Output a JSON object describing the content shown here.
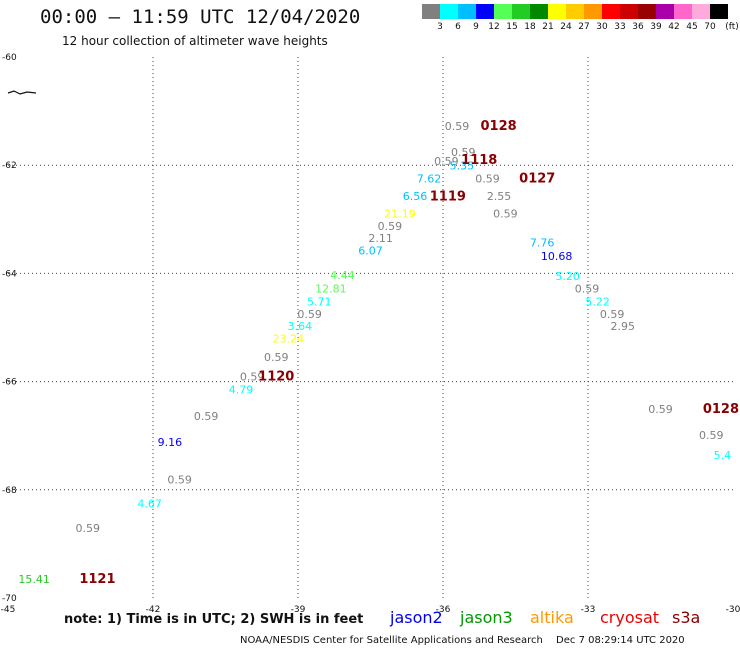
{
  "header": {
    "title": "00:00 – 11:59 UTC 12/04/2020",
    "subtitle": "12 hour collection of altimeter wave heights"
  },
  "legend": {
    "unit": "(ft)",
    "colors": [
      "#808080",
      "#00ffff",
      "#00bfff",
      "#0000ff",
      "#55ff55",
      "#22cc22",
      "#008800",
      "#ffff00",
      "#ffcc00",
      "#ff9900",
      "#ff0000",
      "#cc0000",
      "#990000",
      "#aa00aa",
      "#ff66cc",
      "#ffaadd",
      "#000000"
    ],
    "labels": [
      "3",
      "6",
      "9",
      "12",
      "15",
      "18",
      "21",
      "24",
      "27",
      "30",
      "33",
      "36",
      "39",
      "42",
      "45",
      "70"
    ]
  },
  "footer": {
    "note": "note: 1) Time is in UTC; 2) SWH is in feet",
    "satellites": [
      {
        "name": "jason2",
        "color": "#0000ee"
      },
      {
        "name": "jason3",
        "color": "#009900"
      },
      {
        "name": "altika",
        "color": "#ff9900"
      },
      {
        "name": "cryosat",
        "color": "#ee0000"
      },
      {
        "name": "s3a",
        "color": "#880000"
      }
    ],
    "credit": "NOAA/NESDIS Center for Satellite Applications and Research",
    "timestamp": "Dec  7 08:29:14 UTC 2020"
  },
  "chart_data": {
    "type": "scatter",
    "title": "00:00 – 11:59 UTC 12/04/2020",
    "subtitle": "12 hour collection of altimeter wave heights",
    "xlim": [
      -45,
      -30
    ],
    "ylim": [
      -70,
      -60
    ],
    "x_ticks": [
      "-45",
      "-42",
      "-39",
      "-36",
      "-33",
      "-30"
    ],
    "y_ticks": [
      "-60",
      "-62",
      "-64",
      "-66",
      "-68",
      "-70"
    ],
    "grid": true,
    "points": [
      {
        "lon": -35.71,
        "lat": -61.35,
        "label": "0.59",
        "color": "#808080"
      },
      {
        "lon": -35.93,
        "lat": -62.0,
        "label": "0.59",
        "color": "#808080"
      },
      {
        "lon": -35.58,
        "lat": -61.83,
        "label": "0.59",
        "color": "#808080"
      },
      {
        "lon": -35.61,
        "lat": -62.08,
        "label": "5.35",
        "color": "#00bfff"
      },
      {
        "lon": -36.29,
        "lat": -62.32,
        "label": "7.62",
        "color": "#00bfff"
      },
      {
        "lon": -35.08,
        "lat": -62.32,
        "label": "0.59",
        "color": "#808080"
      },
      {
        "lon": -36.58,
        "lat": -62.64,
        "label": "6.56",
        "color": "#00bfff"
      },
      {
        "lon": -34.84,
        "lat": -62.64,
        "label": "2.55",
        "color": "#808080"
      },
      {
        "lon": -36.89,
        "lat": -62.97,
        "label": "21.19",
        "color": "#ffff00"
      },
      {
        "lon": -34.71,
        "lat": -62.97,
        "label": "0.59",
        "color": "#808080"
      },
      {
        "lon": -37.1,
        "lat": -63.2,
        "label": "0.59",
        "color": "#808080"
      },
      {
        "lon": -37.29,
        "lat": -63.42,
        "label": "2.11",
        "color": "#808080"
      },
      {
        "lon": -37.5,
        "lat": -63.65,
        "label": "6.07",
        "color": "#00bfff"
      },
      {
        "lon": -33.95,
        "lat": -63.5,
        "label": "7.76",
        "color": "#00bfff"
      },
      {
        "lon": -33.65,
        "lat": -63.75,
        "label": "10.68",
        "color": "#0000ff"
      },
      {
        "lon": -38.08,
        "lat": -64.1,
        "label": "4.44",
        "color": "#55ff55"
      },
      {
        "lon": -33.42,
        "lat": -64.12,
        "label": "5.20",
        "color": "#00ffff"
      },
      {
        "lon": -38.32,
        "lat": -64.35,
        "label": "12.81",
        "color": "#55ff55"
      },
      {
        "lon": -33.02,
        "lat": -64.35,
        "label": "0.59",
        "color": "#808080"
      },
      {
        "lon": -38.56,
        "lat": -64.59,
        "label": "5.71",
        "color": "#00ffff"
      },
      {
        "lon": -32.8,
        "lat": -64.59,
        "label": "5.22",
        "color": "#00ffff"
      },
      {
        "lon": -38.76,
        "lat": -64.82,
        "label": "0.59",
        "color": "#808080"
      },
      {
        "lon": -32.5,
        "lat": -64.82,
        "label": "0.59",
        "color": "#808080"
      },
      {
        "lon": -38.96,
        "lat": -65.05,
        "label": "3.64",
        "color": "#00ffff"
      },
      {
        "lon": -32.28,
        "lat": -65.05,
        "label": "2.95",
        "color": "#808080"
      },
      {
        "lon": -39.2,
        "lat": -65.28,
        "label": "23.24",
        "color": "#ffff00"
      },
      {
        "lon": -39.45,
        "lat": -65.62,
        "label": "0.59",
        "color": "#808080"
      },
      {
        "lon": -39.95,
        "lat": -65.98,
        "label": "0.59",
        "color": "#808080"
      },
      {
        "lon": -40.18,
        "lat": -66.22,
        "label": "4.79",
        "color": "#00ffff"
      },
      {
        "lon": -40.9,
        "lat": -66.71,
        "label": "0.59",
        "color": "#808080"
      },
      {
        "lon": -41.65,
        "lat": -67.19,
        "label": "9.16",
        "color": "#0000ff"
      },
      {
        "lon": -41.45,
        "lat": -67.88,
        "label": "0.59",
        "color": "#808080"
      },
      {
        "lon": -42.07,
        "lat": -68.33,
        "label": "4.67",
        "color": "#00ffff"
      },
      {
        "lon": -43.35,
        "lat": -68.78,
        "label": "0.59",
        "color": "#808080"
      },
      {
        "lon": -44.46,
        "lat": -69.72,
        "label": "15.41",
        "color": "#22cc22"
      },
      {
        "lon": -31.5,
        "lat": -66.58,
        "label": "0.59",
        "color": "#808080"
      },
      {
        "lon": -30.45,
        "lat": -67.06,
        "label": "0.59",
        "color": "#808080"
      },
      {
        "lon": -30.22,
        "lat": -67.43,
        "label": "5.4",
        "color": "#00ffff"
      }
    ],
    "time_labels": [
      {
        "lon": -34.85,
        "lat": -61.35,
        "label": "0128",
        "color": "#880000"
      },
      {
        "lon": -35.25,
        "lat": -61.98,
        "label": "1118",
        "color": "#880000"
      },
      {
        "lon": -34.05,
        "lat": -62.32,
        "label": "0127",
        "color": "#880000"
      },
      {
        "lon": -35.9,
        "lat": -62.65,
        "label": "1119",
        "color": "#880000"
      },
      {
        "lon": -39.45,
        "lat": -65.98,
        "label": "1120",
        "color": "#880000"
      },
      {
        "lon": -43.15,
        "lat": -69.72,
        "label": "1121",
        "color": "#880000"
      },
      {
        "lon": -30.25,
        "lat": -66.58,
        "label": "0128",
        "color": "#880000"
      }
    ]
  }
}
